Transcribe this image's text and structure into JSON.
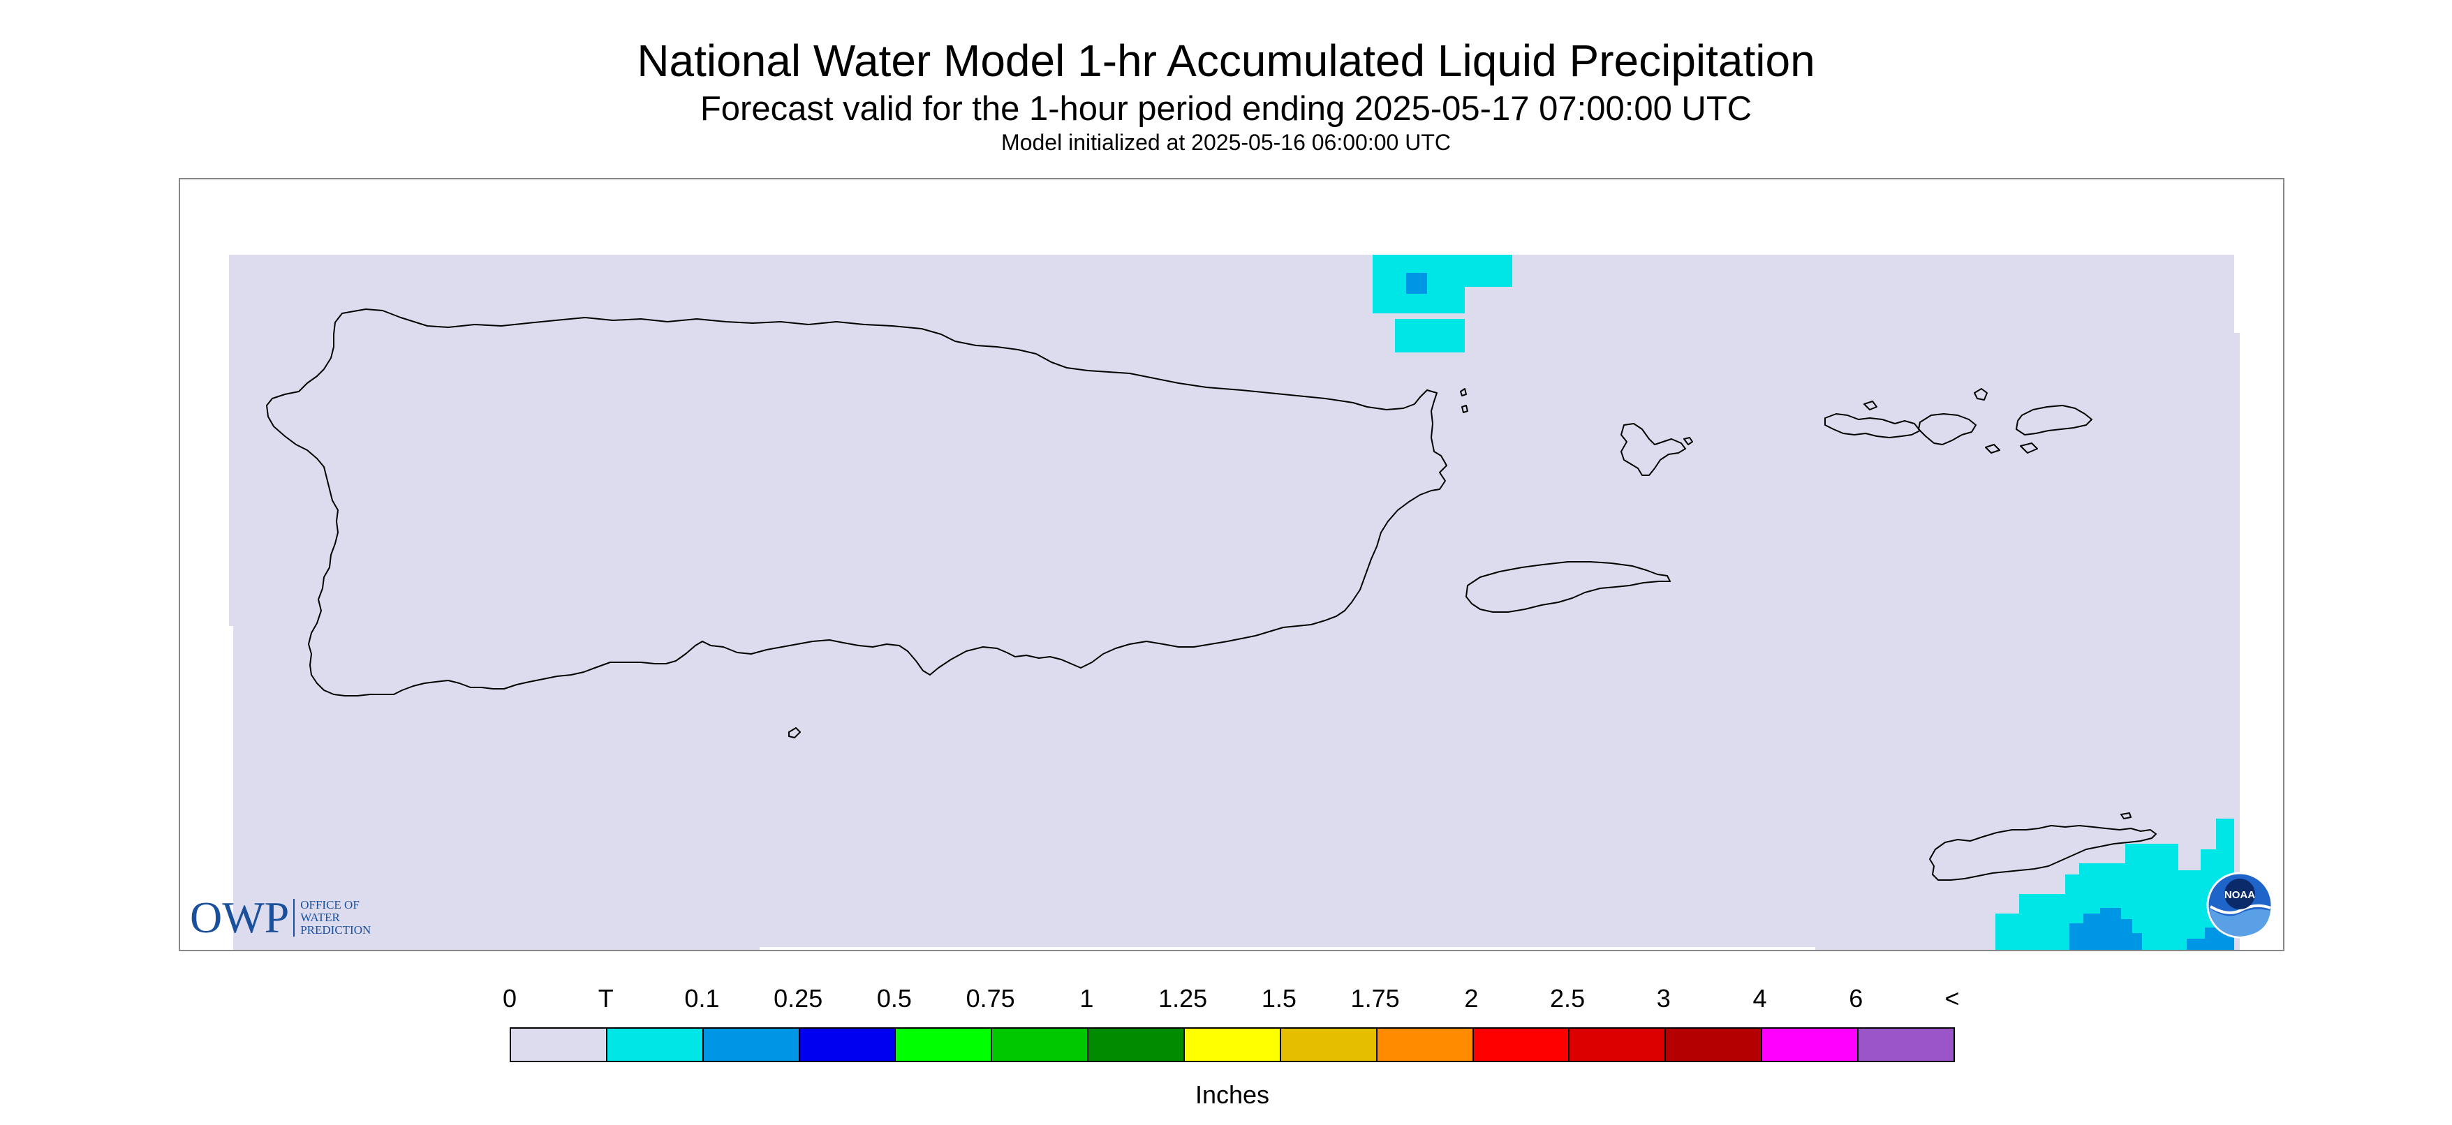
{
  "title": "National Water Model 1-hr Accumulated Liquid Precipitation",
  "subtitle": "Forecast valid for the 1-hour period ending 2025-05-17 07:00:00 UTC",
  "init_text": "Model initialized at 2025-05-16 06:00:00 UTC",
  "map": {
    "background_color": "#dcdcee",
    "coast_color": "#000000",
    "regions": [
      "Puerto Rico",
      "Vieques",
      "Culebra",
      "St. Thomas",
      "St. John",
      "St. Croix"
    ]
  },
  "logos": {
    "owp_mark": "OWP",
    "owp_text_lines": [
      "Office of",
      "Water",
      "Prediction"
    ],
    "noaa_text": "NOAA"
  },
  "legend": {
    "units": "Inches",
    "tick_labels": [
      "0",
      "T",
      "0.1",
      "0.25",
      "0.5",
      "0.75",
      "1",
      "1.25",
      "1.5",
      "1.75",
      "2",
      "2.5",
      "3",
      "4",
      "6",
      "<"
    ],
    "colors": [
      "#dcdcee",
      "#00e5e5",
      "#0096e6",
      "#0000f0",
      "#00ff00",
      "#00c800",
      "#008c00",
      "#ffff00",
      "#e6be00",
      "#ff8c00",
      "#ff0000",
      "#dc0000",
      "#b40000",
      "#ff00ff",
      "#9b55c8"
    ]
  }
}
